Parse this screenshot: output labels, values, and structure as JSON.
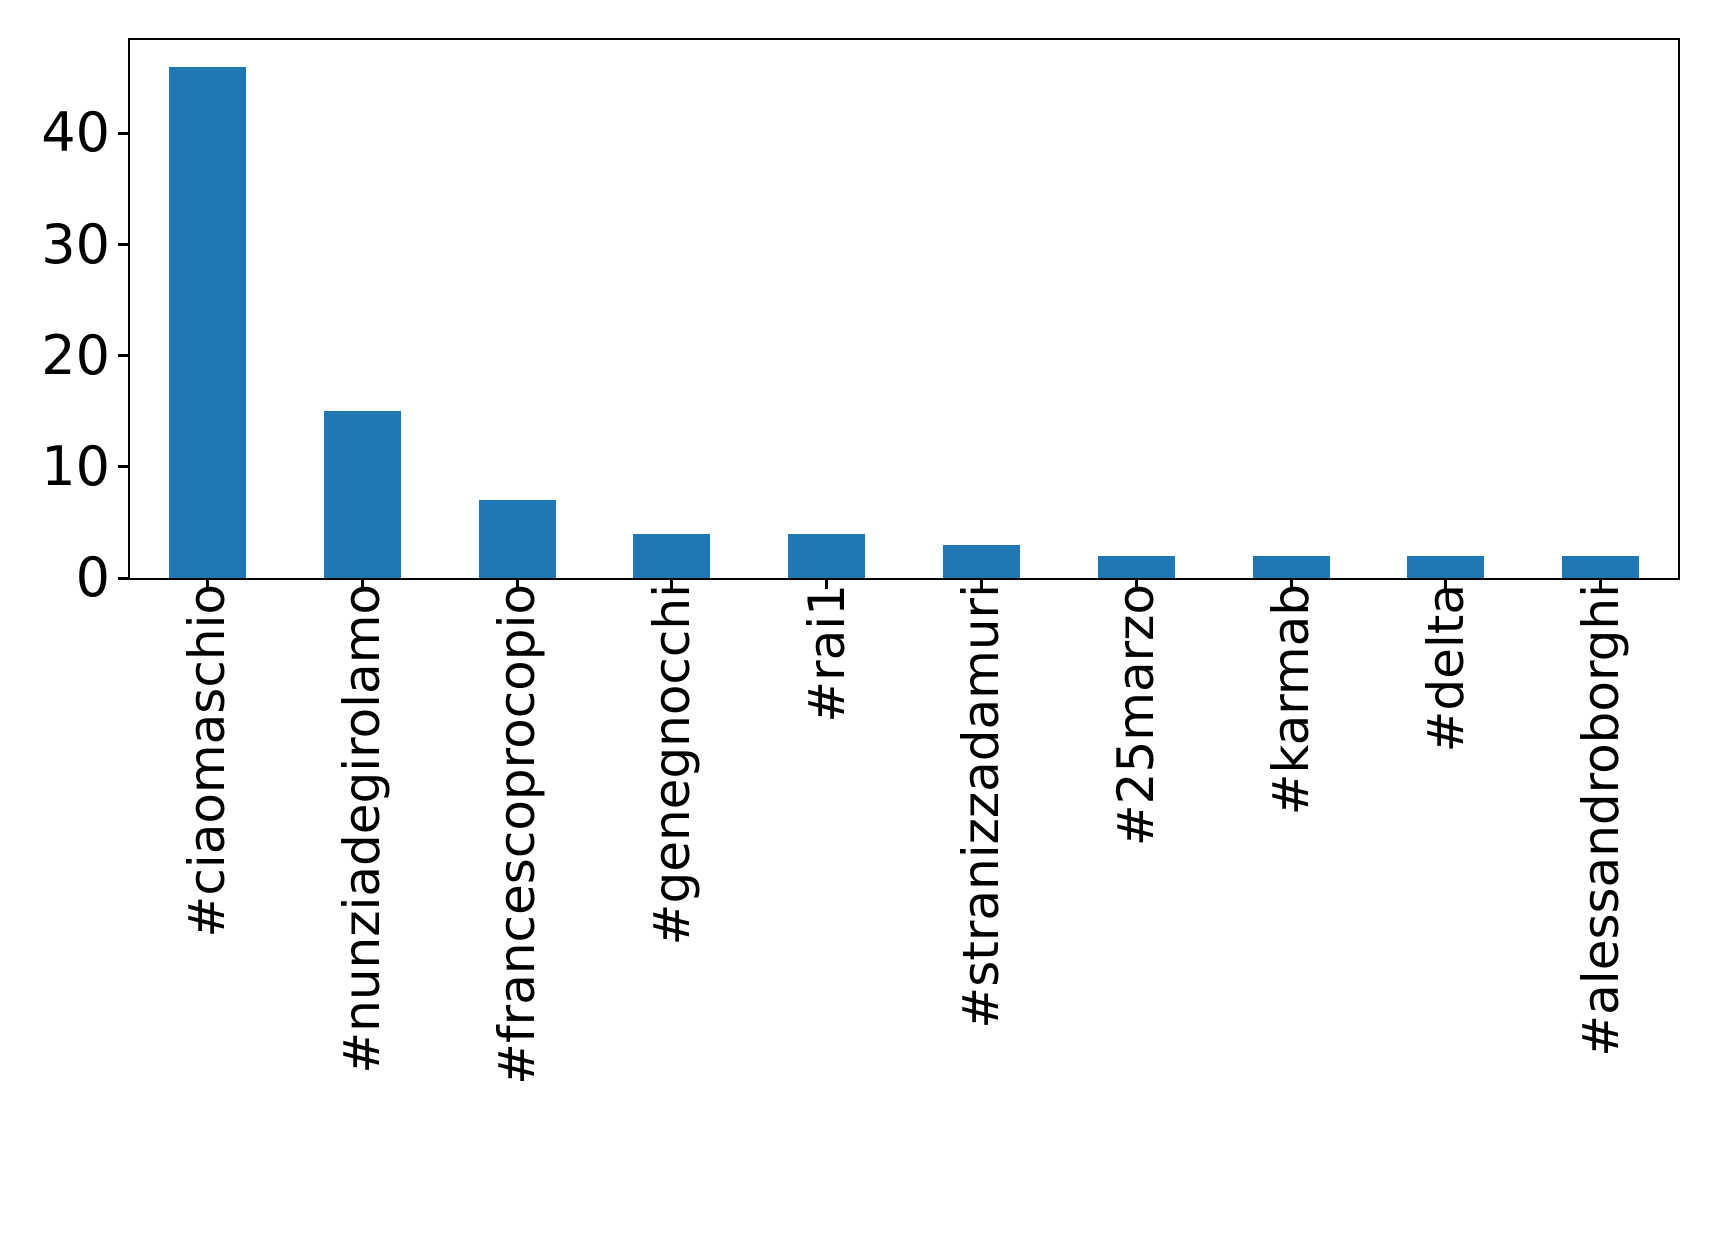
{
  "chart_data": {
    "type": "bar",
    "title": "",
    "xlabel": "",
    "ylabel": "",
    "categories": [
      "#ciaomaschio",
      "#nunziadegirolamo",
      "#francescoprocopio",
      "#genegnocchi",
      "#rai1",
      "#stranizzadamuri",
      "#25marzo",
      "#karmab",
      "#delta",
      "#alessandroborghi"
    ],
    "values": [
      46,
      15,
      7,
      4,
      4,
      3,
      2,
      2,
      2,
      2
    ],
    "yticks": [
      0,
      10,
      20,
      30,
      40
    ],
    "ylim": [
      0,
      48.4
    ],
    "x_tick_rotation": 90,
    "grid": false,
    "legend": "none",
    "bar_color": "#1f77b4",
    "axis_color": "#000000",
    "background_color": "#ffffff"
  }
}
